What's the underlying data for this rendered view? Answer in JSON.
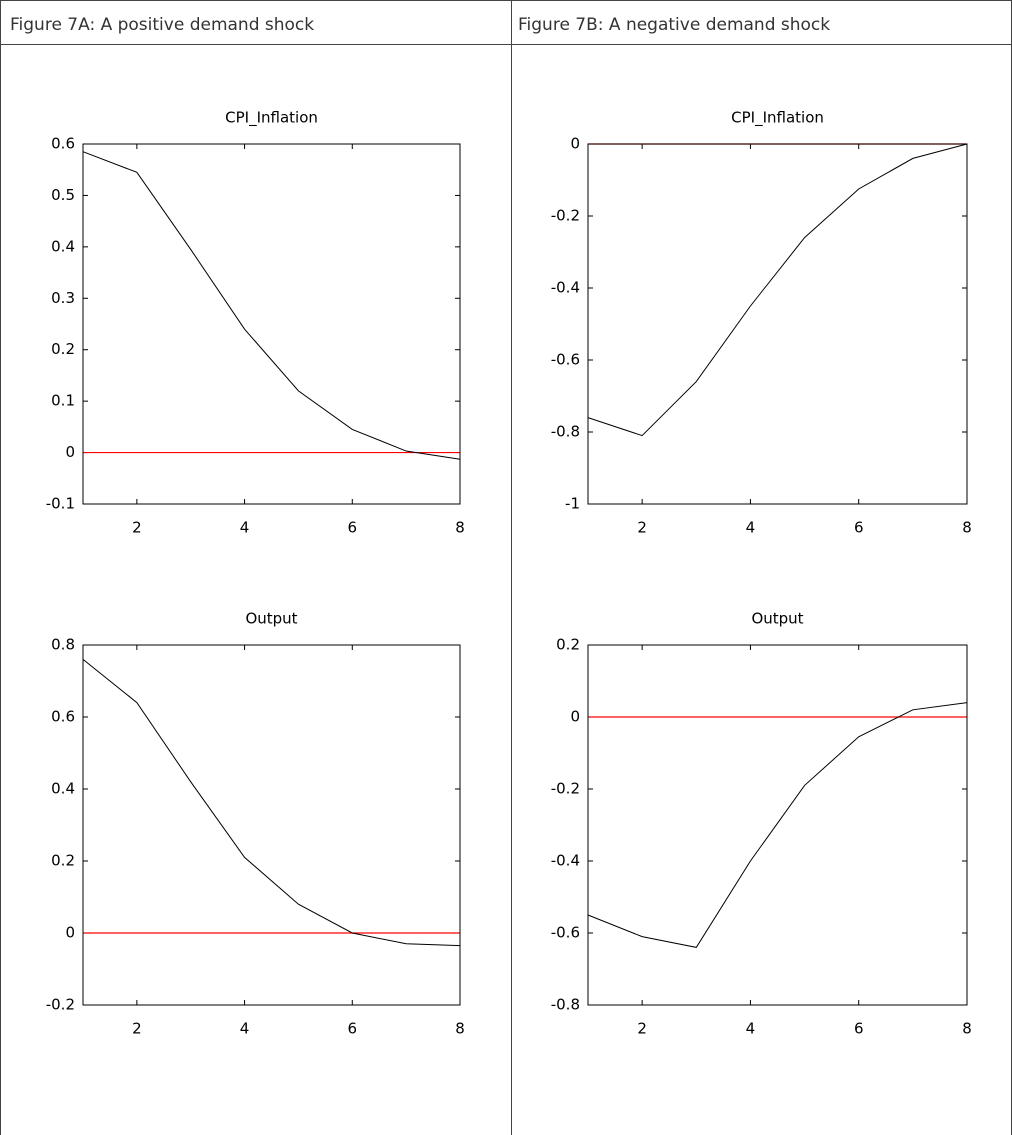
{
  "panels": [
    {
      "caption": "Figure 7A: A positive demand shock"
    },
    {
      "caption": "Figure 7B: A negative demand shock"
    }
  ],
  "chart_data": [
    {
      "type": "line",
      "title": "CPI_Inflation",
      "x": [
        1,
        2,
        3,
        4,
        5,
        6,
        7,
        8
      ],
      "values": [
        0.585,
        0.545,
        0.395,
        0.24,
        0.12,
        0.045,
        0.003,
        -0.013
      ],
      "color": "#000000",
      "reference_line": {
        "value": 0,
        "color": "#ff0000"
      },
      "xlim": [
        1,
        8
      ],
      "xticks": [
        2,
        4,
        6,
        8
      ],
      "ylim": [
        -0.1,
        0.6
      ],
      "yticks": [
        -0.1,
        0,
        0.1,
        0.2,
        0.3,
        0.4,
        0.5,
        0.6
      ]
    },
    {
      "type": "line",
      "title": "Output",
      "x": [
        1,
        2,
        3,
        4,
        5,
        6,
        7,
        8
      ],
      "values": [
        0.76,
        0.64,
        0.42,
        0.21,
        0.08,
        0.0,
        -0.03,
        -0.035
      ],
      "color": "#000000",
      "reference_line": {
        "value": 0,
        "color": "#ff0000"
      },
      "xlim": [
        1,
        8
      ],
      "xticks": [
        2,
        4,
        6,
        8
      ],
      "ylim": [
        -0.2,
        0.8
      ],
      "yticks": [
        -0.2,
        0,
        0.2,
        0.4,
        0.6,
        0.8
      ]
    },
    {
      "type": "line",
      "title": "CPI_Inflation",
      "x": [
        1,
        2,
        3,
        4,
        5,
        6,
        7,
        8
      ],
      "values": [
        -0.76,
        -0.81,
        -0.66,
        -0.45,
        -0.26,
        -0.125,
        -0.04,
        0.0
      ],
      "color": "#000000",
      "reference_line": {
        "value": 0,
        "color": "#ff0000"
      },
      "xlim": [
        1,
        8
      ],
      "xticks": [
        2,
        4,
        6,
        8
      ],
      "ylim": [
        -1,
        0
      ],
      "yticks": [
        -1,
        -0.8,
        -0.6,
        -0.4,
        -0.2,
        0
      ]
    },
    {
      "type": "line",
      "title": "Output",
      "x": [
        1,
        2,
        3,
        4,
        5,
        6,
        7,
        8
      ],
      "values": [
        -0.55,
        -0.61,
        -0.64,
        -0.4,
        -0.19,
        -0.055,
        0.02,
        0.04
      ],
      "color": "#000000",
      "reference_line": {
        "value": 0,
        "color": "#ff0000"
      },
      "xlim": [
        1,
        8
      ],
      "xticks": [
        2,
        4,
        6,
        8
      ],
      "ylim": [
        -0.8,
        0.2
      ],
      "yticks": [
        -0.8,
        -0.6,
        -0.4,
        -0.2,
        0,
        0.2
      ]
    }
  ]
}
